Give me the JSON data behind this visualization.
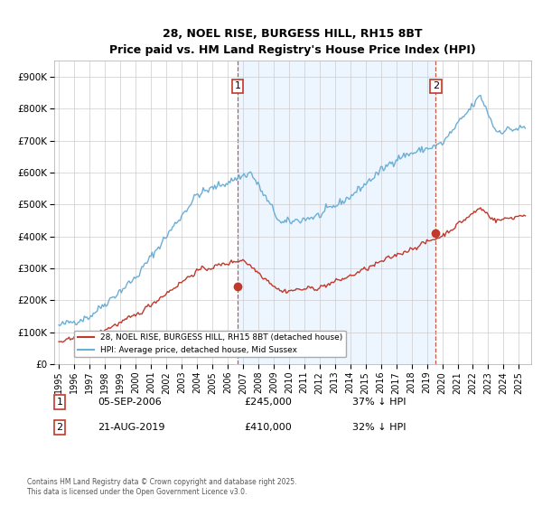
{
  "title": "28, NOEL RISE, BURGESS HILL, RH15 8BT",
  "subtitle": "Price paid vs. HM Land Registry's House Price Index (HPI)",
  "legend_line1": "28, NOEL RISE, BURGESS HILL, RH15 8BT (detached house)",
  "legend_line2": "HPI: Average price, detached house, Mid Sussex",
  "transaction1_date": "05-SEP-2006",
  "transaction1_price": 245000,
  "transaction1_note": "37% ↓ HPI",
  "transaction2_date": "21-AUG-2019",
  "transaction2_price": 410000,
  "transaction2_note": "32% ↓ HPI",
  "footnote": "Contains HM Land Registry data © Crown copyright and database right 2025.\nThis data is licensed under the Open Government Licence v3.0.",
  "hpi_color": "#6baed6",
  "price_color": "#c0392b",
  "vline_color": "#c0392b",
  "shade_color": "#ddeeff",
  "ylim": [
    0,
    950000
  ],
  "yticks": [
    0,
    100000,
    200000,
    300000,
    400000,
    500000,
    600000,
    700000,
    800000,
    900000
  ],
  "xlim_start": 1994.7,
  "xlim_end": 2025.8,
  "t1_x": 2006.67,
  "t1_y": 245000,
  "t2_x": 2019.58,
  "t2_y": 410000
}
